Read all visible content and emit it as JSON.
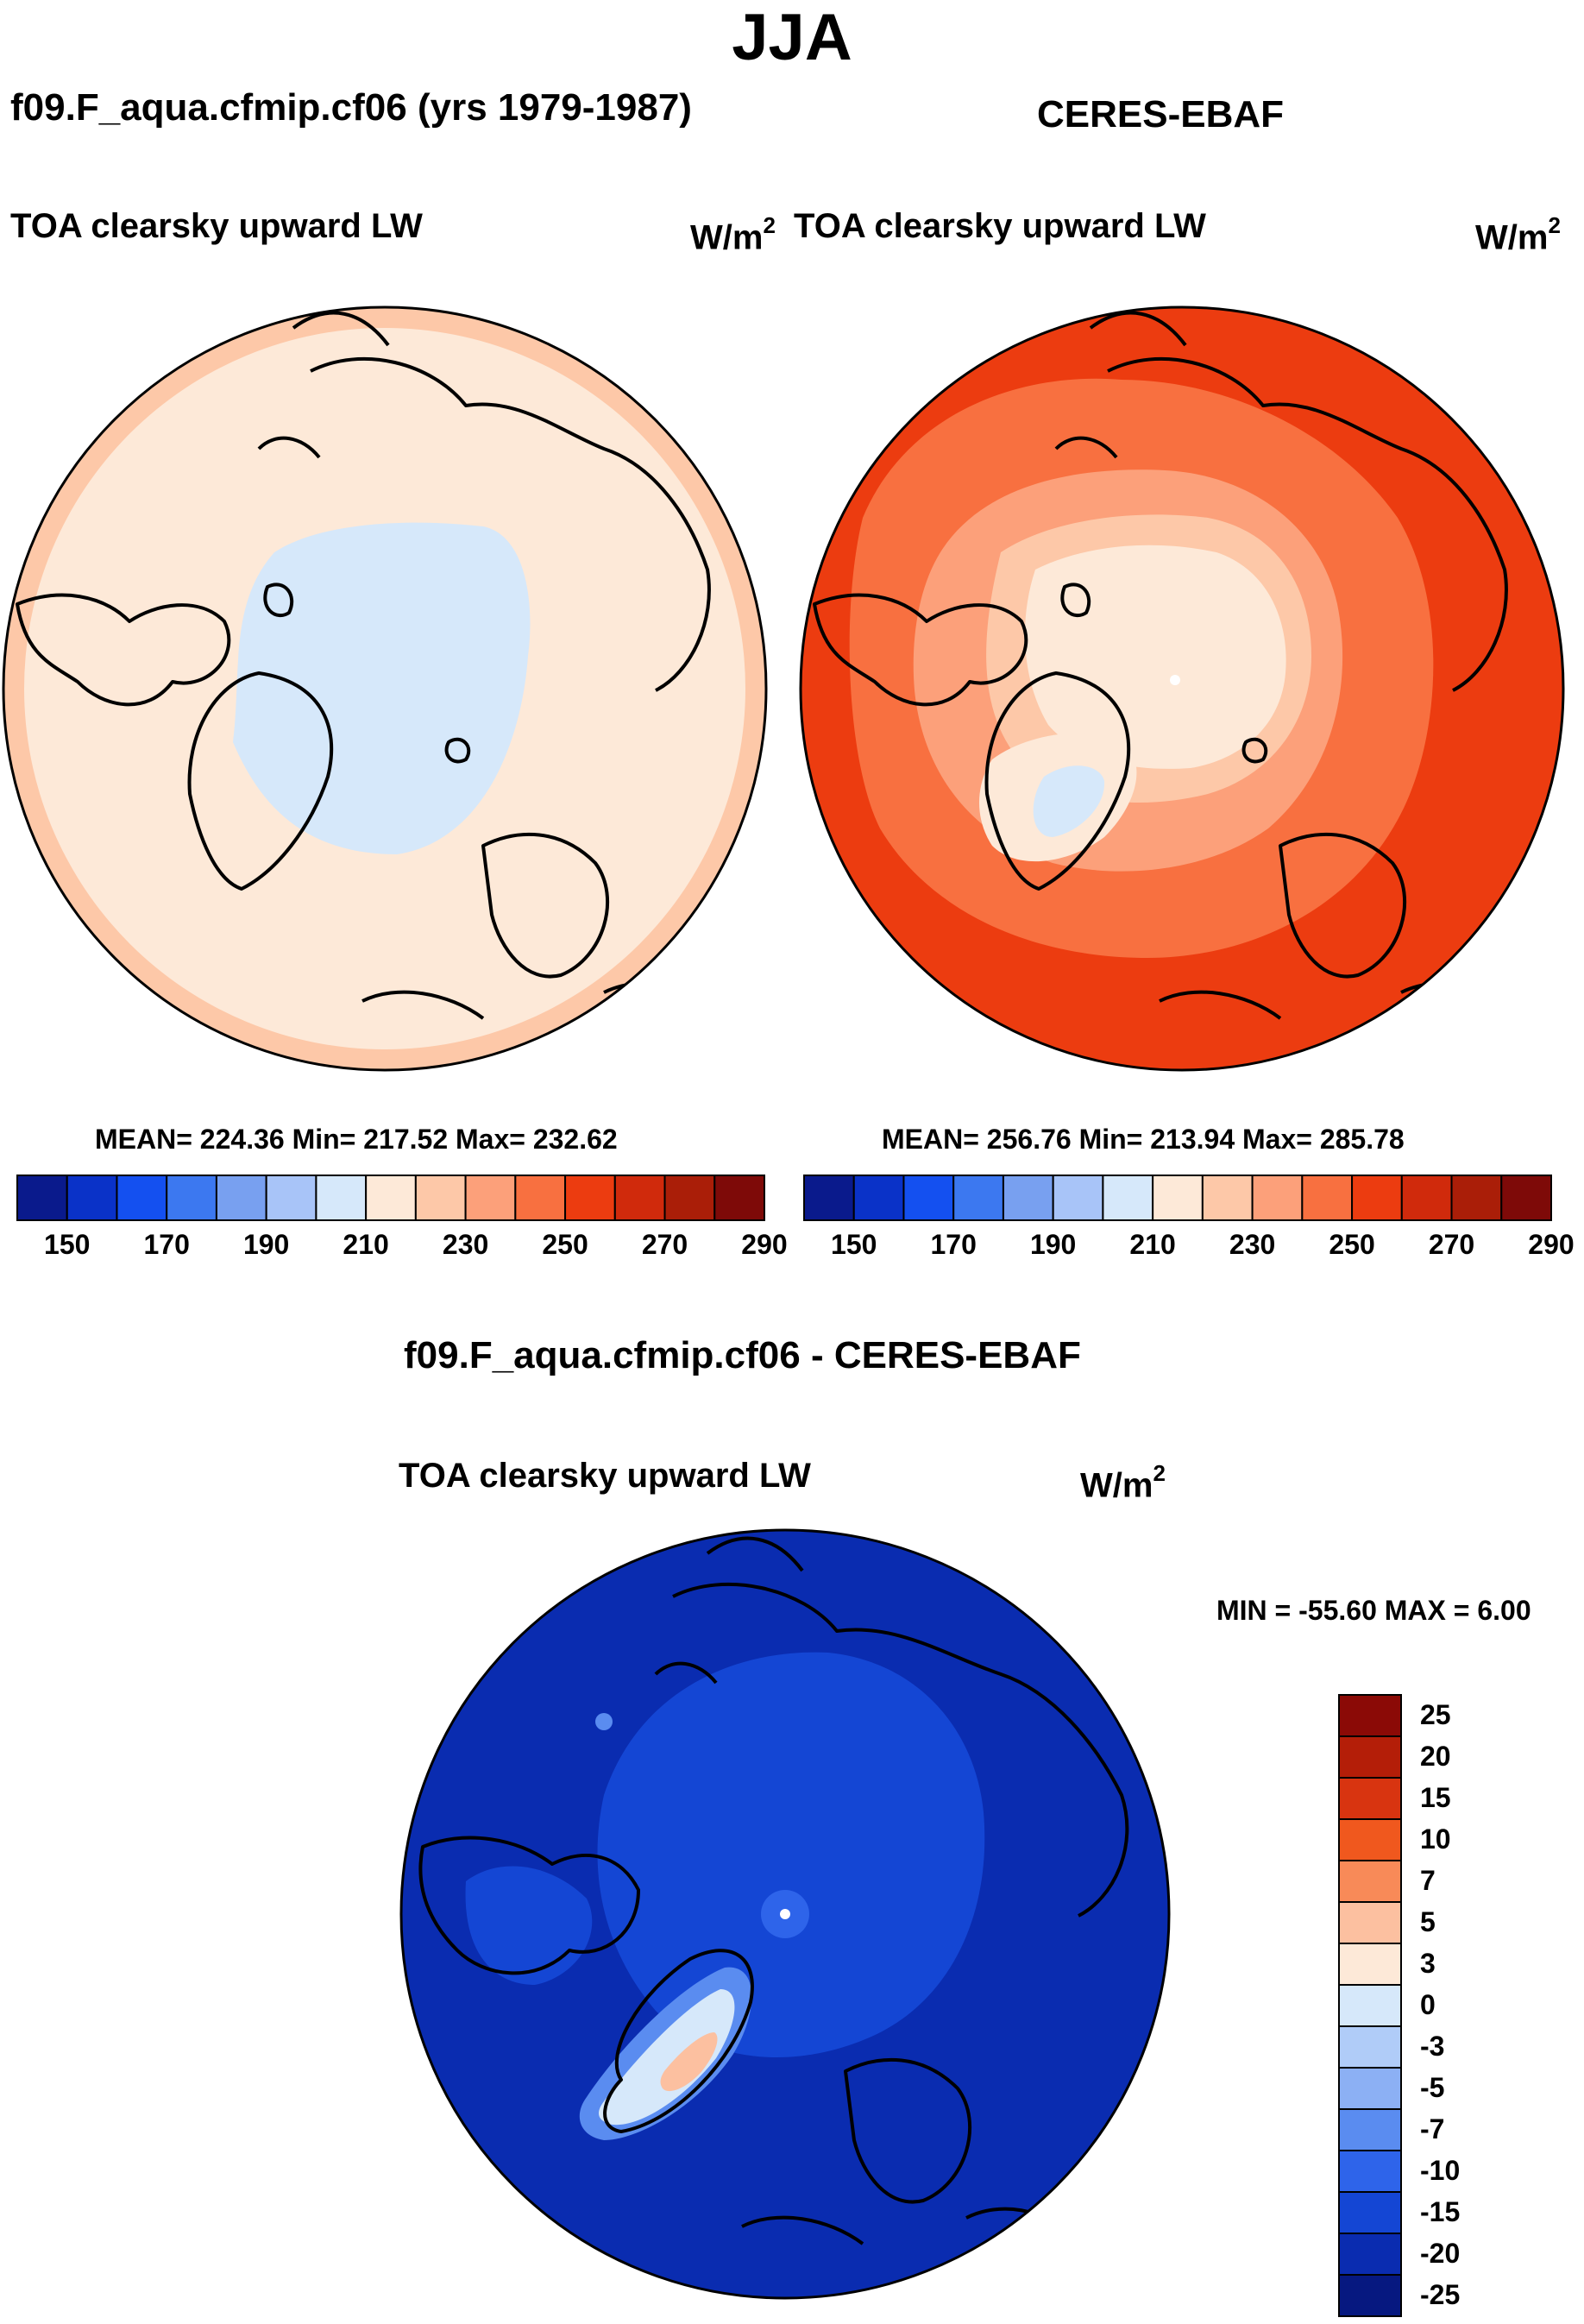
{
  "figure": {
    "title": "JJA",
    "units_main": "W/m",
    "units_exp": "2"
  },
  "chart_data": [
    {
      "type": "heatmap",
      "projection": "north-polar-stereographic",
      "case_title": "f09.F_aqua.cfmip.cf06 (yrs 1979-1987)",
      "variable": "TOA clearsky upward LW",
      "units": "W/m2",
      "stats": {
        "mean": 224.36,
        "min": 217.52,
        "max": 232.62
      },
      "stats_text": "MEAN= 224.36  Min= 217.52  Max= 232.62",
      "colorbar_levels": [
        150,
        160,
        170,
        180,
        190,
        200,
        210,
        220,
        230,
        240,
        250,
        260,
        270,
        280,
        290
      ],
      "colorbar_tick_labels": [
        "150",
        "170",
        "190",
        "210",
        "230",
        "250",
        "270",
        "290"
      ],
      "colorbar_colors": [
        "#0a1a8c",
        "#0a32c8",
        "#1450f0",
        "#3c78f0",
        "#78a0f0",
        "#a8c4f8",
        "#d6e8fa",
        "#fde9d8",
        "#fdc8a8",
        "#fca07a",
        "#f87040",
        "#ec3c10",
        "#d02a0c",
        "#aa1e08",
        "#7e0a08"
      ]
    },
    {
      "type": "heatmap",
      "projection": "north-polar-stereographic",
      "case_title": "CERES-EBAF",
      "variable": "TOA clearsky upward LW",
      "units": "W/m2",
      "stats": {
        "mean": 256.76,
        "min": 213.94,
        "max": 285.78
      },
      "stats_text": "MEAN= 256.76  Min= 213.94  Max= 285.78",
      "colorbar_levels": [
        150,
        160,
        170,
        180,
        190,
        200,
        210,
        220,
        230,
        240,
        250,
        260,
        270,
        280,
        290
      ],
      "colorbar_tick_labels": [
        "150",
        "170",
        "190",
        "210",
        "230",
        "250",
        "270",
        "290"
      ],
      "colorbar_colors": [
        "#0a1a8c",
        "#0a32c8",
        "#1450f0",
        "#3c78f0",
        "#78a0f0",
        "#a8c4f8",
        "#d6e8fa",
        "#fde9d8",
        "#fdc8a8",
        "#fca07a",
        "#f87040",
        "#ec3c10",
        "#d02a0c",
        "#aa1e08",
        "#7e0a08"
      ]
    },
    {
      "type": "heatmap",
      "projection": "north-polar-stereographic",
      "case_title": "f09.F_aqua.cfmip.cf06 - CERES-EBAF",
      "variable": "TOA clearsky upward LW",
      "units": "W/m2",
      "stats": {
        "min": -55.6,
        "max": 6.0
      },
      "stats_text": "MIN = -55.60 MAX =   6.00",
      "colorbar_levels": [
        25,
        20,
        15,
        10,
        7,
        5,
        3,
        0,
        -3,
        -5,
        -7,
        -10,
        -15,
        -20,
        -25
      ],
      "colorbar_tick_labels": [
        "25",
        "20",
        "15",
        "10",
        "7",
        "5",
        "3",
        "0",
        "-3",
        "-5",
        "-7",
        "-10",
        "-15",
        "-20",
        "-25"
      ],
      "colorbar_colors": [
        "#8b0a06",
        "#b41e08",
        "#d83410",
        "#f0581e",
        "#f88a58",
        "#fcc0a0",
        "#fde9d8",
        "#d6e8fa",
        "#b0ccf8",
        "#8cb0f4",
        "#5a8cf0",
        "#2e64ea",
        "#1446d4",
        "#0a2cb0",
        "#061880"
      ]
    }
  ]
}
